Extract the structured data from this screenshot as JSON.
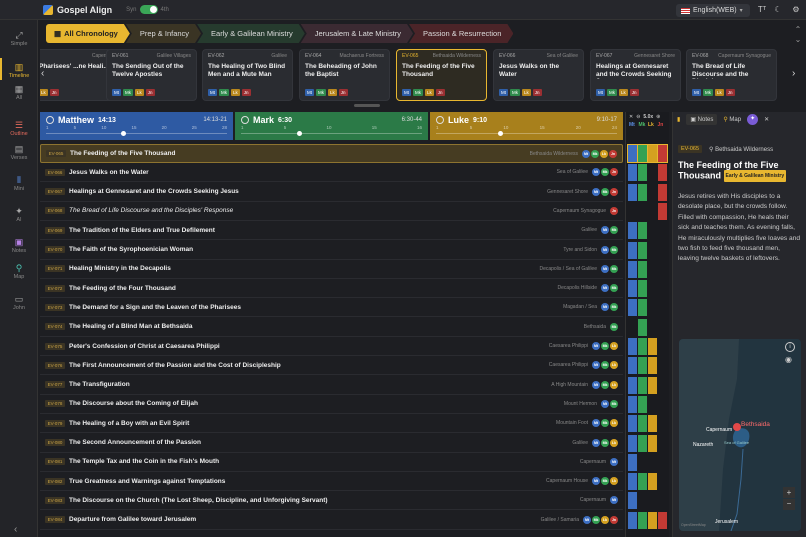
{
  "app": {
    "title": "Gospel Align",
    "toggle_left": "Syn",
    "toggle_right": "4th",
    "language": "English(WEB)"
  },
  "sidebar": [
    {
      "icon": "simple-icon",
      "label": "Simple"
    },
    {
      "icon": "timeline-icon",
      "label": "Timeline"
    },
    {
      "icon": "all-icon",
      "label": "All"
    },
    {
      "icon": "outline-icon",
      "label": "Outline"
    },
    {
      "icon": "verses-icon",
      "label": "Verses"
    },
    {
      "icon": "mini-icon",
      "label": "Mini"
    },
    {
      "icon": "ai-icon",
      "label": "AI"
    },
    {
      "icon": "notes-icon",
      "label": "Notes"
    },
    {
      "icon": "map-icon",
      "label": "Map"
    },
    {
      "icon": "john-icon",
      "label": "John"
    }
  ],
  "breadcrumb": [
    "All Chronology",
    "Prep & Infancy",
    "Early & Galilean Ministry",
    "Jerusalem & Late Ministry",
    "Passion & Resurrection"
  ],
  "cards": [
    {
      "id": "",
      "loc": "Capernaum",
      "title": "Pharisees' ...ne Heali...",
      "tags": [
        "Lk",
        "Jn"
      ]
    },
    {
      "id": "EV-061",
      "loc": "Galilee Villages",
      "title": "The Sending Out of the Twelve Apostles",
      "tags": [
        "Mt",
        "Mk",
        "Lk",
        "Jn"
      ]
    },
    {
      "id": "EV-062",
      "loc": "Galilee",
      "title": "The Healing of Two Blind Men and a Mute Man",
      "tags": [
        "Mt",
        "Mk",
        "Lk",
        "Jn"
      ]
    },
    {
      "id": "EV-064",
      "loc": "Machaerus Fortress",
      "title": "The Beheading of John the Baptist",
      "tags": [
        "Mt",
        "Mk",
        "Lk",
        "Jn"
      ]
    },
    {
      "id": "EV-065",
      "loc": "Bethsaida Wilderness",
      "title": "The Feeding of the Five Thousand",
      "tags": [
        "Mt",
        "Mk",
        "Lk",
        "Jn"
      ]
    },
    {
      "id": "EV-066",
      "loc": "Sea of Galilee",
      "title": "Jesus Walks on the Water",
      "tags": [
        "Mt",
        "Mk",
        "Lk",
        "Jn"
      ]
    },
    {
      "id": "EV-067",
      "loc": "Gennesaret Shore",
      "title": "Healings at Gennesaret and the Crowds Seeking Jesus",
      "tags": [
        "Mt",
        "Mk",
        "Lk",
        "Jn"
      ]
    },
    {
      "id": "EV-068",
      "loc": "Capernaum Synagogue",
      "title": "The Bread of Life Discourse and the Discipl...",
      "tags": [
        "Mt",
        "Mk",
        "Lk",
        "Jn"
      ]
    }
  ],
  "gospels": {
    "matthew": {
      "name": "Matthew",
      "ref": "14:13",
      "range": "14:13-21",
      "ticks": [
        "1",
        "5",
        "10",
        "15",
        "20",
        "25",
        "28"
      ]
    },
    "mark": {
      "name": "Mark",
      "ref": "6:30",
      "range": "6:30-44",
      "ticks": [
        "1",
        "5",
        "10",
        "15",
        "16"
      ]
    },
    "luke": {
      "name": "Luke",
      "ref": "9:10",
      "range": "9:10-17",
      "ticks": [
        "1",
        "5",
        "10",
        "15",
        "20",
        "24"
      ]
    }
  },
  "mini": {
    "zoom": "5.0x",
    "labels": [
      "Mt",
      "Mk",
      "Lk",
      "Jn"
    ]
  },
  "events": [
    {
      "id": "EV-065",
      "title": "The Feeding of the Five Thousand",
      "loc": "Bethsaida Wilderness",
      "g": [
        "Mt",
        "Mk",
        "Lk",
        "Jn"
      ],
      "it": false
    },
    {
      "id": "EV-066",
      "title": "Jesus Walks on the Water",
      "loc": "Sea of Galilee",
      "g": [
        "Mt",
        "Mk",
        "Jn"
      ],
      "it": false
    },
    {
      "id": "EV-067",
      "title": "Healings at Gennesaret and the Crowds Seeking Jesus",
      "loc": "Gennesaret Shore",
      "g": [
        "Mt",
        "Mk",
        "Jn"
      ],
      "it": false
    },
    {
      "id": "EV-068",
      "title": "The Bread of Life Discourse and the Disciples' Response",
      "loc": "Capernaum Synagogue",
      "g": [
        "Jn"
      ],
      "it": true
    },
    {
      "id": "EV-069",
      "title": "The Tradition of the Elders and True Defilement",
      "loc": "Galilee",
      "g": [
        "Mt",
        "Mk"
      ],
      "it": false
    },
    {
      "id": "EV-070",
      "title": "The Faith of the Syrophoenician Woman",
      "loc": "Tyre and Sidon",
      "g": [
        "Mt",
        "Mk"
      ],
      "it": false
    },
    {
      "id": "EV-071",
      "title": "Healing Ministry in the Decapolis",
      "loc": "Decapolis / Sea of Galilee",
      "g": [
        "Mt",
        "Mk"
      ],
      "it": false
    },
    {
      "id": "EV-072",
      "title": "The Feeding of the Four Thousand",
      "loc": "Decapolis Hillside",
      "g": [
        "Mt",
        "Mk"
      ],
      "it": false
    },
    {
      "id": "EV-073",
      "title": "The Demand for a Sign and the Leaven of the Pharisees",
      "loc": "Magadan / Sea",
      "g": [
        "Mt",
        "Mk"
      ],
      "it": false
    },
    {
      "id": "EV-074",
      "title": "The Healing of a Blind Man at Bethsaida",
      "loc": "Bethsaida",
      "g": [
        "Mk"
      ],
      "it": false
    },
    {
      "id": "EV-075",
      "title": "Peter's Confession of Christ at Caesarea Philippi",
      "loc": "Caesarea Philippi",
      "g": [
        "Mt",
        "Mk",
        "Lk"
      ],
      "it": false
    },
    {
      "id": "EV-076",
      "title": "The First Announcement of the Passion and the Cost of Discipleship",
      "loc": "Caesarea Philippi",
      "g": [
        "Mt",
        "Mk",
        "Lk"
      ],
      "it": false
    },
    {
      "id": "EV-077",
      "title": "The Transfiguration",
      "loc": "A High Mountain",
      "g": [
        "Mt",
        "Mk",
        "Lk"
      ],
      "it": false
    },
    {
      "id": "EV-078",
      "title": "The Discourse about the Coming of Elijah",
      "loc": "Mount Hermon",
      "g": [
        "Mt",
        "Mk"
      ],
      "it": false
    },
    {
      "id": "EV-079",
      "title": "The Healing of a Boy with an Evil Spirit",
      "loc": "Mountain Foot",
      "g": [
        "Mt",
        "Mk",
        "Lk"
      ],
      "it": false
    },
    {
      "id": "EV-080",
      "title": "The Second Announcement of the Passion",
      "loc": "Galilee",
      "g": [
        "Mt",
        "Mk",
        "Lk"
      ],
      "it": false
    },
    {
      "id": "EV-081",
      "title": "The Temple Tax and the Coin in the Fish's Mouth",
      "loc": "Capernaum",
      "g": [
        "Mt"
      ],
      "it": false
    },
    {
      "id": "EV-082",
      "title": "True Greatness and Warnings against Temptations",
      "loc": "Capernaum House",
      "g": [
        "Mt",
        "Mk",
        "Lk"
      ],
      "it": false
    },
    {
      "id": "EV-083",
      "title": "The Discourse on the Church (The Lost Sheep, Discipline, and Unforgiving Servant)",
      "loc": "Capernaum",
      "g": [
        "Mt"
      ],
      "it": false
    },
    {
      "id": "EV-084",
      "title": "Departure from Galilee toward Jerusalem",
      "loc": "Galilee / Samaria",
      "g": [
        "Mt",
        "Mk",
        "Lk",
        "Jn"
      ],
      "it": false
    }
  ],
  "panel": {
    "tab_notes": "Notes",
    "tab_map": "Map",
    "event_id": "EV-065",
    "location": "Bethsaida Wilderness",
    "title": "The Feeding of the Five Thousand",
    "period": "Early & Galilean Ministry",
    "description": "Jesus retires with His disciples to a desolate place, but the crowds follow. Filled with compassion, He heals their sick and teaches them. As evening falls, He miraculously multiplies five loaves and two fish to feed five thousand men, leaving twelve baskets of leftovers.",
    "map": {
      "places": [
        "Bethsaida",
        "Capernaum",
        "Nazareth",
        "Sea of Galilee",
        "Jerusalem"
      ],
      "attribution": "OpenStreetMap"
    }
  },
  "colors": {
    "Mt": "#3d6fc2",
    "Mk": "#34a153",
    "Lk": "#d4a020",
    "Jn": "#c23a34",
    "accent": "#e8b730"
  }
}
